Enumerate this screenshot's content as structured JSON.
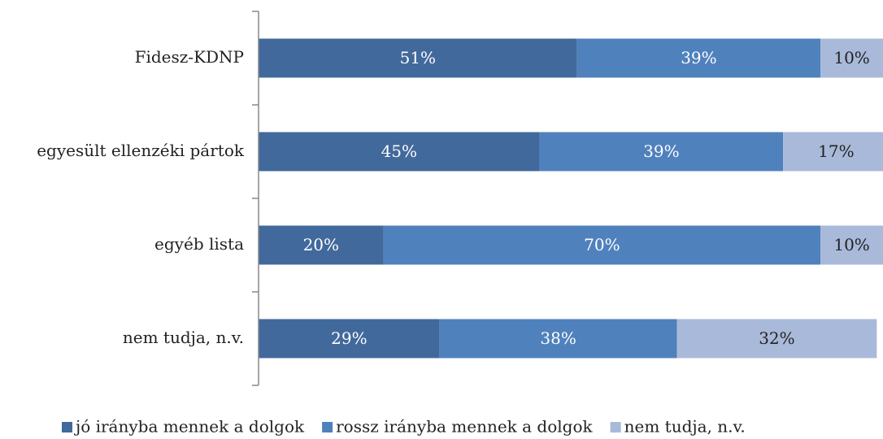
{
  "chart_data": {
    "type": "stacked-bar-horizontal",
    "categories": [
      "Fidesz-KDNP",
      "egyesült ellenzéki pártok",
      "egyéb lista",
      "nem tudja, n.v."
    ],
    "xlim": [
      0,
      100
    ],
    "series": [
      {
        "name": "jó irányba mennek a dolgok",
        "color": "#41699c",
        "label_color": "#ffffff",
        "values": [
          51,
          45,
          20,
          29
        ],
        "value_labels": [
          "51%",
          "45%",
          "20%",
          "29%"
        ]
      },
      {
        "name": "rossz irányba mennek a dolgok",
        "color": "#4f81bd",
        "label_color": "#ffffff",
        "values": [
          39,
          39,
          70,
          38
        ],
        "value_labels": [
          "39%",
          "39%",
          "70%",
          "38%"
        ]
      },
      {
        "name": "nem tudja, n.v.",
        "color": "#a9b9d9",
        "label_color": "#222222",
        "values": [
          10,
          17,
          10,
          32
        ],
        "value_labels": [
          "10%",
          "17%",
          "10%",
          "32%"
        ]
      }
    ],
    "legend": "bottom"
  }
}
